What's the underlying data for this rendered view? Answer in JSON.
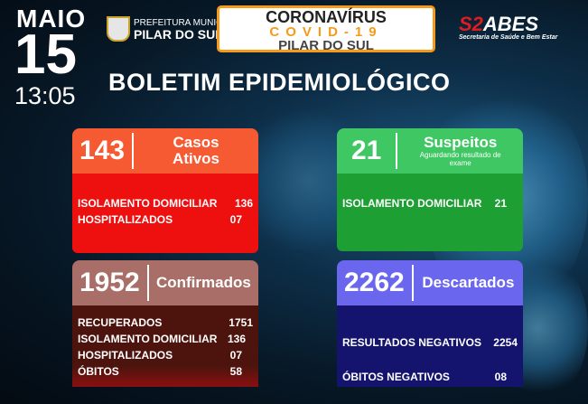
{
  "header": {
    "month": "MAIO",
    "day": "15",
    "time": "13:05",
    "prefeitura_line1": "PREFEITURA MUNICIPAL",
    "prefeitura_line2": "PILAR DO SUL",
    "covid_line1": "CORONAVÍRUS",
    "covid_line2": "COVID-19",
    "covid_line3": "PILAR DO SUL",
    "logo_prefix": "S2",
    "logo_main": "ABES",
    "logo_sub": "Secretaria de Saúde e Bem Estar",
    "title": "BOLETIM EPIDEMIOLÓGICO"
  },
  "cards": {
    "ativos": {
      "number": "143",
      "label": "Casos Ativos",
      "rows": [
        {
          "label": "ISOLAMENTO DOMICILIAR",
          "value": "136"
        },
        {
          "label": "HOSPITALIZADOS",
          "value": "07"
        }
      ]
    },
    "suspeitos": {
      "number": "21",
      "label": "Suspeitos",
      "sub": "Aguardando resultado de exame",
      "rows": [
        {
          "label": "ISOLAMENTO DOMICILIAR",
          "value": "21"
        }
      ]
    },
    "confirmados": {
      "number": "1952",
      "label": "Confirmados",
      "rows": [
        {
          "label": "RECUPERADOS",
          "value": "1751"
        },
        {
          "label": "ISOLAMENTO DOMICILIAR",
          "value": "136"
        },
        {
          "label": "HOSPITALIZADOS",
          "value": "07"
        },
        {
          "label": "ÓBITOS",
          "value": "58"
        }
      ]
    },
    "descartados": {
      "number": "2262",
      "label": "Descartados",
      "rows": [
        {
          "label": "RESULTADOS NEGATIVOS",
          "value": "2254"
        },
        {
          "label": "ÓBITOS NEGATIVOS",
          "value": "08"
        }
      ]
    }
  },
  "colors": {
    "ativos_head": "#f65a33",
    "ativos_body": "#ee0f0f",
    "suspeitos_head": "#3ec763",
    "suspeitos_body": "#1d9f33",
    "confirmados_head": "#a86e67",
    "confirmados_body": "#4d140e",
    "descartados_head": "#6a66ee",
    "descartados_body": "#14146e",
    "covid_accent": "#f59a1b"
  }
}
